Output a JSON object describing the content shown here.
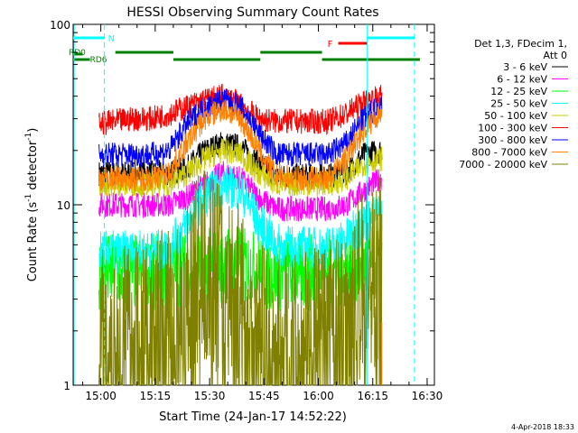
{
  "chart_data": {
    "type": "line",
    "title": "HESSI Observing Summary Count Rates",
    "xlabel": "Start Time (24-Jan-17 14:52:22)",
    "ylabel": "Count Rate (s⁻¹ detector⁻¹)",
    "ylabel_main": "Count Rate (s",
    "ylabel_sup1": "-1",
    "ylabel_mid": " detector",
    "ylabel_sup2": "-1",
    "ylabel_end": ")",
    "ylim": [
      1,
      100
    ],
    "yscale": "log",
    "xlim": [
      "14:52:22",
      "16:32:00"
    ],
    "x_ticks": [
      "15:00",
      "15:15",
      "15:30",
      "15:45",
      "16:00",
      "16:15",
      "16:30"
    ],
    "y_ticks": [
      "1",
      "10",
      "100"
    ],
    "legend_header": [
      "Det 1,3, FDecim 1,",
      "Att 0"
    ],
    "legend_position": "right",
    "footer_date": "4-Apr-2018 18:33",
    "flags": [
      {
        "label": "N",
        "color": "#00ffff"
      },
      {
        "label": "F",
        "color": "#ff0000"
      },
      {
        "label": "RD0",
        "color": "#008000"
      },
      {
        "label": "RD6",
        "color": "#008000"
      }
    ],
    "series": [
      {
        "name": "3 - 6 keV",
        "color": "#000000",
        "profile": [
          15,
          15,
          15,
          15,
          15,
          16,
          20,
          22,
          21,
          17,
          14.5,
          14.5,
          14.5,
          14.5,
          15,
          19,
          20
        ]
      },
      {
        "name": "6 - 12 keV",
        "color": "#ff00ff",
        "profile": [
          10,
          10,
          10,
          10,
          10,
          11,
          13,
          15,
          14,
          11,
          9.5,
          9.5,
          9.5,
          9.5,
          10,
          12,
          14
        ]
      },
      {
        "name": "12 - 25 keV",
        "color": "#00ff00",
        "profile": [
          4.2,
          4.2,
          4.2,
          4.2,
          4.2,
          4.3,
          4.5,
          4.7,
          4.6,
          4.3,
          4.2,
          4.2,
          4.2,
          4.2,
          4.3,
          4.6,
          4.8
        ]
      },
      {
        "name": "25 - 50 keV",
        "color": "#00ffff",
        "profile": [
          5.5,
          5.5,
          5.5,
          5.5,
          5.7,
          8,
          11,
          13,
          12,
          8,
          6,
          5.8,
          5.8,
          5.8,
          6.5,
          8,
          9
        ]
      },
      {
        "name": "50 - 100 keV",
        "color": "#cccc00",
        "profile": [
          13,
          13,
          13,
          13,
          13,
          15,
          18,
          20,
          19,
          15,
          13,
          13,
          13,
          13,
          14,
          17,
          18
        ]
      },
      {
        "name": "100 - 300 keV",
        "color": "#ff0000",
        "profile": [
          28,
          29,
          30,
          30,
          32,
          35,
          38,
          40,
          36,
          30,
          29,
          29,
          29,
          29,
          32,
          37,
          40
        ]
      },
      {
        "name": "300 - 800 keV",
        "color": "#0000ff",
        "profile": [
          19,
          19,
          19,
          19,
          20,
          28,
          35,
          38,
          35,
          25,
          19,
          19,
          19,
          19,
          22,
          30,
          36
        ]
      },
      {
        "name": "800 - 7000 keV",
        "color": "#ff8000",
        "profile": [
          14,
          14,
          14,
          14,
          15,
          22,
          30,
          34,
          30,
          20,
          14.5,
          14,
          14,
          14,
          18,
          26,
          33
        ]
      },
      {
        "name": "7000 - 20000 keV",
        "color": "#808000",
        "profile": [
          1.8,
          1.8,
          1.8,
          1.9,
          2.2,
          3.5,
          4.5,
          4.0,
          3.0,
          1.8,
          1.5,
          1.5,
          1.6,
          1.8,
          2.2,
          3.5,
          4.5
        ]
      }
    ]
  }
}
